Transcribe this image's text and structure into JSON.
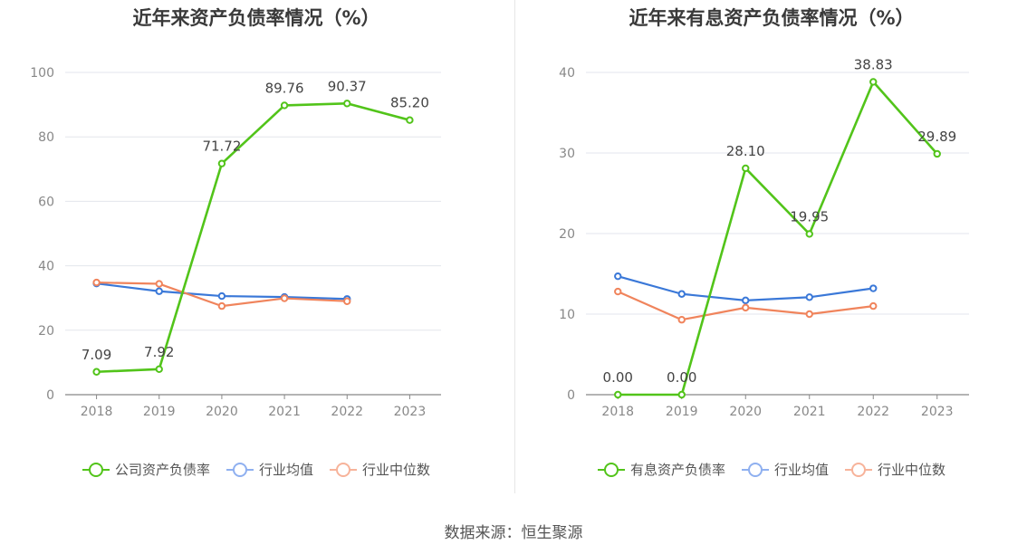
{
  "source_label": "数据来源：恒生聚源",
  "chart_data": [
    {
      "type": "line",
      "title": "近年来资产负债率情况（%）",
      "categories": [
        "2018",
        "2019",
        "2020",
        "2021",
        "2022",
        "2023"
      ],
      "ylim": [
        0,
        100
      ],
      "yticks": [
        0,
        20,
        40,
        60,
        80,
        100
      ],
      "grid": true,
      "legend_position": "bottom",
      "series": [
        {
          "name": "公司资产负债率",
          "color": "#52c41a",
          "values": [
            7.09,
            7.92,
            71.72,
            89.76,
            90.37,
            85.2
          ],
          "labels": [
            "7.09",
            "7.92",
            "71.72",
            "89.76",
            "90.37",
            "85.20"
          ]
        },
        {
          "name": "行业均值",
          "color": "#3a78d8",
          "values": [
            34.5,
            32.1,
            30.6,
            30.3,
            29.7,
            null
          ]
        },
        {
          "name": "行业中位数",
          "color": "#f0845c",
          "values": [
            34.8,
            34.4,
            27.5,
            29.9,
            29.0,
            null
          ]
        }
      ]
    },
    {
      "type": "line",
      "title": "近年来有息资产负债率情况（%）",
      "categories": [
        "2018",
        "2019",
        "2020",
        "2021",
        "2022",
        "2023"
      ],
      "ylim": [
        0,
        40
      ],
      "yticks": [
        0,
        10,
        20,
        30,
        40
      ],
      "grid": true,
      "legend_position": "bottom",
      "series": [
        {
          "name": "有息资产负债率",
          "color": "#52c41a",
          "values": [
            0.0,
            0.0,
            28.1,
            19.95,
            38.83,
            29.89
          ],
          "labels": [
            "0.00",
            "0.00",
            "28.10",
            "19.95",
            "38.83",
            "29.89"
          ]
        },
        {
          "name": "行业均值",
          "color": "#3a78d8",
          "values": [
            14.7,
            12.5,
            11.7,
            12.1,
            13.2,
            null
          ]
        },
        {
          "name": "行业中位数",
          "color": "#f0845c",
          "values": [
            12.8,
            9.3,
            10.8,
            10.0,
            11.0,
            null
          ]
        }
      ]
    }
  ]
}
